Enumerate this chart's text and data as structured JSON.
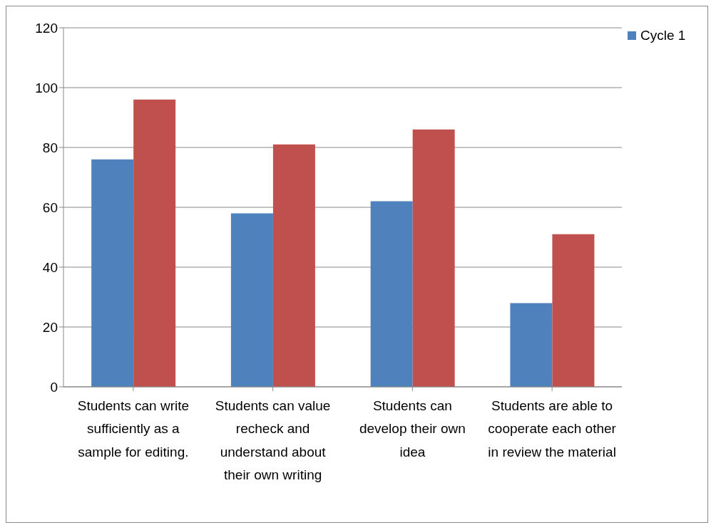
{
  "chart_data": {
    "type": "bar",
    "categories": [
      "Students can write sufficiently as a sample for editing.",
      "Students can value recheck and understand about their own writing",
      "Students can develop their own idea",
      "Students are able to cooperate each other in review the material"
    ],
    "series": [
      {
        "name": "Cycle 1",
        "color": "#4f81bd",
        "values": [
          76,
          58,
          62,
          28
        ]
      },
      {
        "color": "#c0504d",
        "values": [
          96,
          81,
          86,
          51
        ]
      }
    ],
    "ylim": [
      0,
      120
    ],
    "yticks": [
      0,
      20,
      40,
      60,
      80,
      100,
      120
    ],
    "grid": "y",
    "legend": "top right"
  }
}
